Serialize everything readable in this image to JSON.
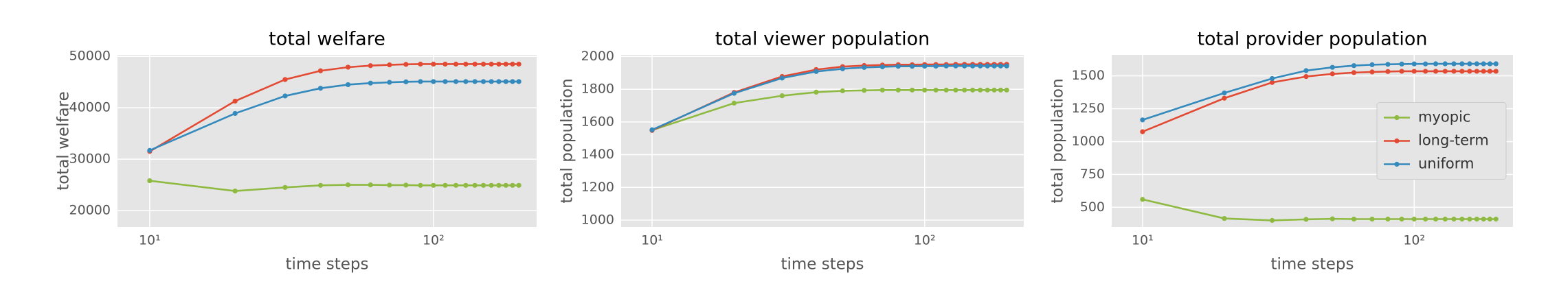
{
  "chart_data": [
    {
      "type": "line",
      "title": "total welfare",
      "xlabel": "time steps",
      "ylabel": "total welfare",
      "xscale": "log",
      "x": [
        10,
        20,
        30,
        40,
        50,
        60,
        70,
        80,
        90,
        100,
        110,
        120,
        130,
        140,
        150,
        160,
        170,
        180,
        190,
        200
      ],
      "xlim": [
        7.7,
        231
      ],
      "xticks": [
        {
          "value": 10,
          "label": "10¹"
        },
        {
          "value": 100,
          "label": "10²"
        }
      ],
      "ylim": [
        16800,
        50300
      ],
      "yticks": [
        20000,
        30000,
        40000,
        50000
      ],
      "grid": true,
      "series": [
        {
          "name": "myopic",
          "color": "#8EBA42",
          "values": [
            25800,
            23800,
            24500,
            24900,
            25000,
            25000,
            24950,
            24950,
            24900,
            24900,
            24900,
            24900,
            24900,
            24900,
            24900,
            24900,
            24900,
            24900,
            24900,
            24900
          ]
        },
        {
          "name": "long-term",
          "color": "#E24A33",
          "values": [
            31500,
            41300,
            45500,
            47200,
            47900,
            48200,
            48350,
            48450,
            48500,
            48500,
            48500,
            48500,
            48500,
            48500,
            48500,
            48500,
            48500,
            48500,
            48500,
            48500
          ]
        },
        {
          "name": "uniform",
          "color": "#348ABD",
          "values": [
            31700,
            38900,
            42300,
            43800,
            44500,
            44800,
            44950,
            45050,
            45100,
            45100,
            45100,
            45100,
            45100,
            45100,
            45100,
            45100,
            45100,
            45100,
            45100,
            45100
          ]
        }
      ]
    },
    {
      "type": "line",
      "title": "total viewer population",
      "xlabel": "time steps",
      "ylabel": "total population",
      "xscale": "log",
      "x": [
        10,
        20,
        30,
        40,
        50,
        60,
        70,
        80,
        90,
        100,
        110,
        120,
        130,
        140,
        150,
        160,
        170,
        180,
        190,
        200
      ],
      "xlim": [
        7.7,
        231
      ],
      "xticks": [
        {
          "value": 10,
          "label": "10¹"
        },
        {
          "value": 100,
          "label": "10²"
        }
      ],
      "ylim": [
        958,
        2010
      ],
      "yticks": [
        1000,
        1200,
        1400,
        1600,
        1800,
        2000
      ],
      "grid": true,
      "series": [
        {
          "name": "myopic",
          "color": "#8EBA42",
          "values": [
            1550,
            1715,
            1760,
            1782,
            1790,
            1793,
            1795,
            1795,
            1795,
            1795,
            1795,
            1795,
            1795,
            1795,
            1795,
            1795,
            1795,
            1795,
            1795,
            1795
          ]
        },
        {
          "name": "long-term",
          "color": "#E24A33",
          "values": [
            1548,
            1780,
            1878,
            1920,
            1938,
            1945,
            1948,
            1950,
            1950,
            1951,
            1951,
            1951,
            1952,
            1952,
            1952,
            1952,
            1952,
            1952,
            1952,
            1952
          ]
        },
        {
          "name": "uniform",
          "color": "#348ABD",
          "values": [
            1552,
            1775,
            1868,
            1908,
            1925,
            1933,
            1937,
            1940,
            1940,
            1941,
            1941,
            1942,
            1942,
            1942,
            1942,
            1942,
            1942,
            1942,
            1942,
            1942
          ]
        }
      ]
    },
    {
      "type": "line",
      "title": "total provider population",
      "xlabel": "time steps",
      "ylabel": "total population",
      "xscale": "log",
      "x": [
        10,
        20,
        30,
        40,
        50,
        60,
        70,
        80,
        90,
        100,
        110,
        120,
        130,
        140,
        150,
        160,
        170,
        180,
        190,
        200
      ],
      "xlim": [
        7.7,
        231
      ],
      "xticks": [
        {
          "value": 10,
          "label": "10¹"
        },
        {
          "value": 100,
          "label": "10²"
        }
      ],
      "ylim": [
        350,
        1660
      ],
      "yticks": [
        500,
        750,
        1000,
        1250,
        1500
      ],
      "grid": true,
      "legend": "center right",
      "series": [
        {
          "name": "myopic",
          "color": "#8EBA42",
          "values": [
            560,
            415,
            400,
            408,
            412,
            410,
            410,
            410,
            410,
            410,
            410,
            410,
            410,
            410,
            410,
            410,
            410,
            410,
            410,
            410
          ]
        },
        {
          "name": "long-term",
          "color": "#E24A33",
          "values": [
            1075,
            1330,
            1450,
            1495,
            1515,
            1525,
            1530,
            1533,
            1535,
            1535,
            1535,
            1535,
            1535,
            1535,
            1535,
            1535,
            1535,
            1535,
            1535,
            1535
          ]
        },
        {
          "name": "uniform",
          "color": "#348ABD",
          "values": [
            1165,
            1370,
            1480,
            1540,
            1565,
            1578,
            1585,
            1588,
            1590,
            1591,
            1591,
            1592,
            1592,
            1592,
            1592,
            1592,
            1592,
            1592,
            1592,
            1592
          ]
        }
      ]
    }
  ]
}
